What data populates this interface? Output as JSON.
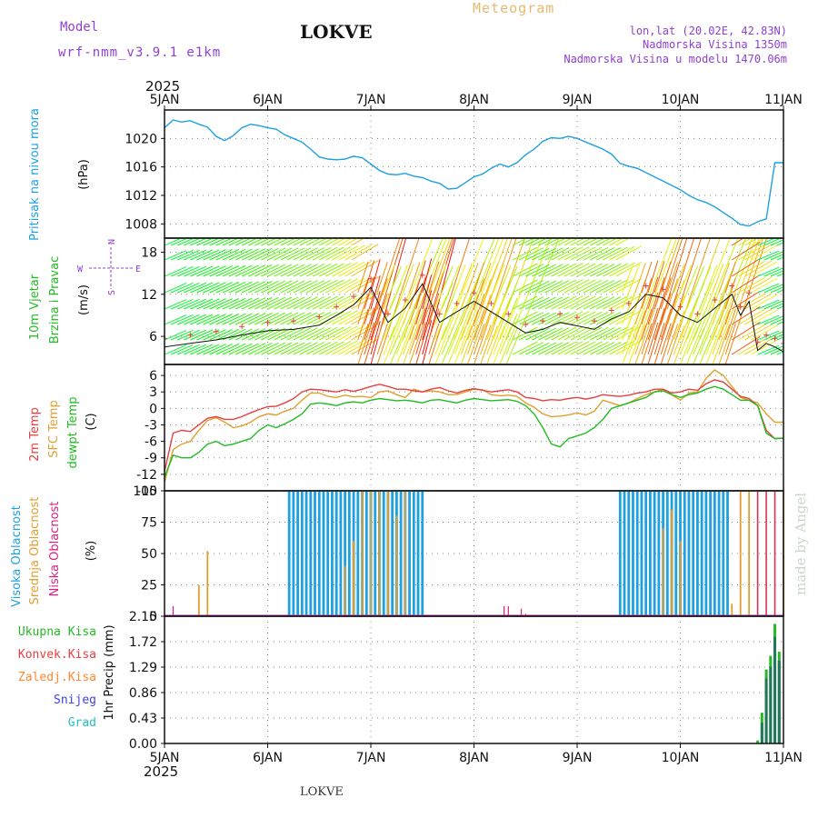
{
  "header": {
    "model_label": "Model",
    "model_name": "wrf-nmm_v3.9.1 e1km",
    "title": "LOKVE",
    "meteogram_label": "Meteogram",
    "coords": "lon,lat (20.02E, 42.83N)",
    "altitude": "Nadmorska Visina 1350m",
    "model_altitude": "Nadmorska Visina u modelu 1470.06m",
    "year_top": "2025",
    "year_bottom": "2025",
    "footer_title": "LOKVE",
    "watermark": "made by Angel"
  },
  "colors": {
    "pressure": "#1fa0e0",
    "wind_label": "#22bb22",
    "temp2m": "#e84040",
    "sfc_temp": "#e0a030",
    "dewpoint": "#22bb22",
    "high_cloud": "#1fa0e0",
    "mid_cloud": "#e0a030",
    "low_cloud": "#dd2080",
    "total_precip": "#22bb22",
    "convective": "#e84040",
    "frozen": "#ff8830",
    "snow": "#4040e0",
    "hail": "#20c0c0",
    "compass": "#9040d0",
    "meta": "#9040d0",
    "watermark": "#c8d8c8"
  },
  "chart_data": [
    {
      "type": "line",
      "panel": "pressure",
      "ylabel_lines": [
        "Pritisak na nivou mora",
        "(hPa)"
      ],
      "ylim": [
        1006,
        1024
      ],
      "yticks": [
        1008,
        1012,
        1016,
        1020
      ],
      "x_categories": [
        "5JAN",
        "6JAN",
        "7JAN",
        "8JAN",
        "9JAN",
        "10JAN",
        "11JAN"
      ],
      "xlim_hours": [
        0,
        144
      ],
      "series": [
        {
          "name": "",
          "x_hours": [
            0,
            2,
            4,
            6,
            8,
            10,
            12,
            14,
            16,
            18,
            20,
            22,
            24,
            26,
            28,
            30,
            32,
            34,
            36,
            38,
            40,
            42,
            44,
            46,
            48,
            50,
            52,
            54,
            56,
            58,
            60,
            62,
            64,
            66,
            68,
            70,
            72,
            74,
            76,
            78,
            80,
            82,
            84,
            86,
            88,
            90,
            92,
            94,
            96,
            98,
            100,
            102,
            104,
            106,
            108,
            110,
            112,
            114,
            116,
            118,
            120,
            122,
            124,
            126,
            128,
            130,
            132,
            134,
            136,
            138,
            140,
            142,
            144
          ],
          "values": [
            1021.5,
            1022.6,
            1022.3,
            1022.5,
            1022.0,
            1021.6,
            1020.3,
            1019.7,
            1020.4,
            1021.5,
            1022.0,
            1021.8,
            1021.5,
            1021.3,
            1020.5,
            1020.0,
            1019.5,
            1018.5,
            1017.4,
            1017.1,
            1017.0,
            1017.1,
            1017.5,
            1017.3,
            1016.4,
            1015.5,
            1015.0,
            1014.9,
            1015.1,
            1014.7,
            1014.5,
            1014.0,
            1013.7,
            1012.9,
            1013.0,
            1013.8,
            1014.6,
            1015.0,
            1015.8,
            1016.4,
            1016.0,
            1016.6,
            1017.7,
            1018.5,
            1019.6,
            1020.1,
            1020.0,
            1020.3,
            1020.0,
            1019.5,
            1019.0,
            1018.5,
            1017.8,
            1016.5,
            1016.1,
            1015.8,
            1015.2,
            1014.6,
            1014.0,
            1013.4,
            1012.8,
            1012.0,
            1011.4,
            1011.0,
            1010.4,
            1009.6,
            1008.8,
            1007.9,
            1007.7,
            1008.3,
            1008.7,
            1016.6,
            1016.6
          ]
        }
      ]
    },
    {
      "type": "line",
      "panel": "wind",
      "ylabel_lines": [
        "10m Vjetar",
        "Brzina i Pravac",
        "(m/s)"
      ],
      "compass": [
        "N",
        "E",
        "S",
        "W"
      ],
      "ylim": [
        2,
        20
      ],
      "yticks": [
        6,
        12,
        18
      ],
      "series": [
        {
          "name": "",
          "x_hours": [
            0,
            6,
            12,
            18,
            24,
            30,
            36,
            40,
            44,
            48,
            52,
            56,
            60,
            64,
            68,
            72,
            76,
            80,
            84,
            88,
            92,
            96,
            100,
            104,
            108,
            112,
            116,
            120,
            124,
            128,
            132,
            134,
            136,
            138,
            140,
            142,
            144
          ],
          "values": [
            4.5,
            5.0,
            5.5,
            6.2,
            6.8,
            7.0,
            7.6,
            9.0,
            10.5,
            13.0,
            8.0,
            10.0,
            13.5,
            8.0,
            9.5,
            11.0,
            9.5,
            8.0,
            6.5,
            7.0,
            8.0,
            7.5,
            7.0,
            8.5,
            9.5,
            12.0,
            11.5,
            9.0,
            8.0,
            10.0,
            12.0,
            9.0,
            11.0,
            4.0,
            5.0,
            4.5,
            3.8
          ]
        }
      ]
    },
    {
      "type": "line",
      "panel": "temperature",
      "ylabel_lines": [
        "2m Temp",
        "SFC Temp",
        "dewpt Temp",
        "(C)"
      ],
      "ylim": [
        -15,
        8
      ],
      "yticks": [
        6,
        3,
        0,
        -3,
        -6,
        -9,
        -12,
        -15
      ],
      "series": [
        {
          "name": "2m Temp",
          "x_hours": [
            0,
            2,
            4,
            6,
            8,
            10,
            12,
            14,
            16,
            18,
            20,
            22,
            24,
            26,
            28,
            30,
            32,
            34,
            36,
            38,
            40,
            42,
            44,
            46,
            48,
            50,
            52,
            54,
            56,
            58,
            60,
            62,
            64,
            66,
            68,
            70,
            72,
            74,
            76,
            78,
            80,
            82,
            84,
            86,
            88,
            90,
            92,
            94,
            96,
            98,
            100,
            102,
            104,
            106,
            108,
            110,
            112,
            114,
            116,
            118,
            120,
            122,
            124,
            126,
            128,
            130,
            132,
            134,
            136,
            138,
            140,
            142,
            144
          ],
          "values": [
            -11.5,
            -4.5,
            -4.0,
            -4.2,
            -3.0,
            -1.8,
            -1.5,
            -2.0,
            -2.0,
            -1.5,
            -0.8,
            -0.2,
            0.3,
            0.4,
            1.0,
            1.8,
            3.0,
            3.5,
            3.4,
            3.2,
            3.0,
            3.4,
            3.1,
            3.5,
            4.0,
            4.4,
            4.0,
            3.5,
            3.5,
            3.2,
            3.0,
            3.5,
            3.8,
            3.2,
            2.8,
            3.3,
            3.6,
            3.3,
            3.0,
            3.2,
            3.4,
            3.0,
            2.0,
            1.8,
            1.4,
            1.6,
            1.5,
            1.8,
            2.0,
            1.7,
            2.0,
            2.5,
            2.3,
            2.2,
            2.4,
            2.8,
            3.0,
            3.5,
            3.5,
            2.8,
            3.0,
            3.5,
            3.3,
            4.5,
            5.2,
            4.8,
            3.5,
            2.2,
            1.8,
            0.5,
            -4.0,
            -5.5,
            -5.4
          ]
        },
        {
          "name": "SFC Temp",
          "x_hours": [
            0,
            2,
            4,
            6,
            8,
            10,
            12,
            14,
            16,
            18,
            20,
            22,
            24,
            26,
            28,
            30,
            32,
            34,
            36,
            38,
            40,
            42,
            44,
            46,
            48,
            50,
            52,
            54,
            56,
            58,
            60,
            62,
            64,
            66,
            68,
            70,
            72,
            74,
            76,
            78,
            80,
            82,
            84,
            86,
            88,
            90,
            92,
            94,
            96,
            98,
            100,
            102,
            104,
            106,
            108,
            110,
            112,
            114,
            116,
            118,
            120,
            122,
            124,
            126,
            128,
            130,
            132,
            134,
            136,
            138,
            140,
            142,
            144
          ],
          "values": [
            -13.5,
            -7.5,
            -6.5,
            -6.0,
            -4.0,
            -2.2,
            -1.7,
            -2.5,
            -3.5,
            -3.2,
            -2.5,
            -1.5,
            -1.0,
            -1.2,
            -0.5,
            0.0,
            1.5,
            2.8,
            2.8,
            2.2,
            2.0,
            2.4,
            2.1,
            2.2,
            2.0,
            3.0,
            3.2,
            2.5,
            2.0,
            3.5,
            3.0,
            3.2,
            3.0,
            2.5,
            2.5,
            3.0,
            3.5,
            3.4,
            2.5,
            2.3,
            2.4,
            2.2,
            1.0,
            0.2,
            -1.0,
            -1.5,
            -1.4,
            -1.2,
            -0.8,
            -1.2,
            -0.5,
            1.5,
            1.0,
            0.5,
            1.0,
            1.8,
            2.5,
            3.0,
            3.5,
            2.5,
            1.5,
            2.8,
            3.0,
            5.5,
            7.0,
            6.0,
            4.0,
            2.0,
            1.5,
            1.0,
            -1.0,
            -2.5,
            -2.5
          ]
        },
        {
          "name": "dewpt Temp",
          "x_hours": [
            0,
            2,
            4,
            6,
            8,
            10,
            12,
            14,
            16,
            18,
            20,
            22,
            24,
            26,
            28,
            30,
            32,
            34,
            36,
            38,
            40,
            42,
            44,
            46,
            48,
            50,
            52,
            54,
            56,
            58,
            60,
            62,
            64,
            66,
            68,
            70,
            72,
            74,
            76,
            78,
            80,
            82,
            84,
            86,
            88,
            90,
            92,
            94,
            96,
            98,
            100,
            102,
            104,
            106,
            108,
            110,
            112,
            114,
            116,
            118,
            120,
            122,
            124,
            126,
            128,
            130,
            132,
            134,
            136,
            138,
            140,
            142,
            144
          ],
          "values": [
            -12.5,
            -8.5,
            -9.0,
            -9.0,
            -8.0,
            -6.5,
            -6.0,
            -6.8,
            -6.5,
            -6.0,
            -5.5,
            -4.0,
            -3.0,
            -3.5,
            -2.8,
            -2.0,
            -1.0,
            0.8,
            1.0,
            0.8,
            0.5,
            1.0,
            1.2,
            1.0,
            1.5,
            1.8,
            1.6,
            1.4,
            1.5,
            1.3,
            1.0,
            1.5,
            1.6,
            1.3,
            1.0,
            1.5,
            1.8,
            1.6,
            1.4,
            1.5,
            1.6,
            1.3,
            0.5,
            -1.0,
            -3.5,
            -6.5,
            -7.0,
            -5.5,
            -5.0,
            -4.5,
            -3.5,
            -2.0,
            0.0,
            0.5,
            1.0,
            1.5,
            2.0,
            3.0,
            3.2,
            2.5,
            2.0,
            2.5,
            2.8,
            3.5,
            4.0,
            3.5,
            2.5,
            1.5,
            1.5,
            0.5,
            -4.5,
            -5.5,
            -5.4
          ]
        }
      ]
    },
    {
      "type": "bar",
      "panel": "clouds",
      "ylabel_lines": [
        "Visoka Oblacnost",
        "Srednja Oblacnost",
        "Niska Oblacnost",
        "(%)"
      ],
      "ylim": [
        0,
        100
      ],
      "yticks": [
        0,
        25,
        50,
        75,
        100
      ],
      "series": [
        {
          "name": "Visoka Oblacnost",
          "segments_hours": [
            [
              29,
              60
            ],
            [
              106,
              131
            ]
          ],
          "value": 100
        },
        {
          "name": "Srednja Oblacnost",
          "x_hours": [
            8,
            10,
            42,
            44,
            46,
            48,
            50,
            52,
            54,
            56,
            116,
            118,
            120,
            132,
            134,
            136,
            138,
            140,
            142,
            144
          ],
          "values": [
            25,
            52,
            40,
            60,
            100,
            100,
            100,
            100,
            80,
            100,
            70,
            85,
            60,
            10,
            100,
            100,
            100,
            100,
            100,
            100
          ]
        },
        {
          "name": "Niska Oblacnost",
          "x_hours": [
            2,
            79,
            80,
            83,
            84,
            138,
            140,
            142,
            144
          ],
          "values": [
            8,
            8,
            8,
            6,
            2,
            100,
            100,
            100,
            100
          ]
        }
      ]
    },
    {
      "type": "bar",
      "panel": "precip",
      "ylabel_lines": [
        "1hr Precip (mm)"
      ],
      "legend": [
        "Ukupna Kisa",
        "Konvek.Kisa",
        "Zaledj.Kisa",
        "Snijeg",
        "Grad"
      ],
      "ylim": [
        0,
        2.15
      ],
      "yticks": [
        0,
        0.43,
        0.86,
        1.29,
        1.72,
        2.15
      ],
      "series": [
        {
          "name": "Ukupna Kisa",
          "x_hours": [
            138,
            139,
            140,
            141,
            142,
            143,
            144
          ],
          "values": [
            0.05,
            0.52,
            1.25,
            1.48,
            2.02,
            1.55,
            0.0
          ]
        },
        {
          "name": "Snijeg",
          "x_hours": [
            139,
            140,
            141,
            142,
            143
          ],
          "values": [
            0.35,
            1.1,
            1.3,
            1.8,
            1.4
          ]
        }
      ]
    }
  ]
}
